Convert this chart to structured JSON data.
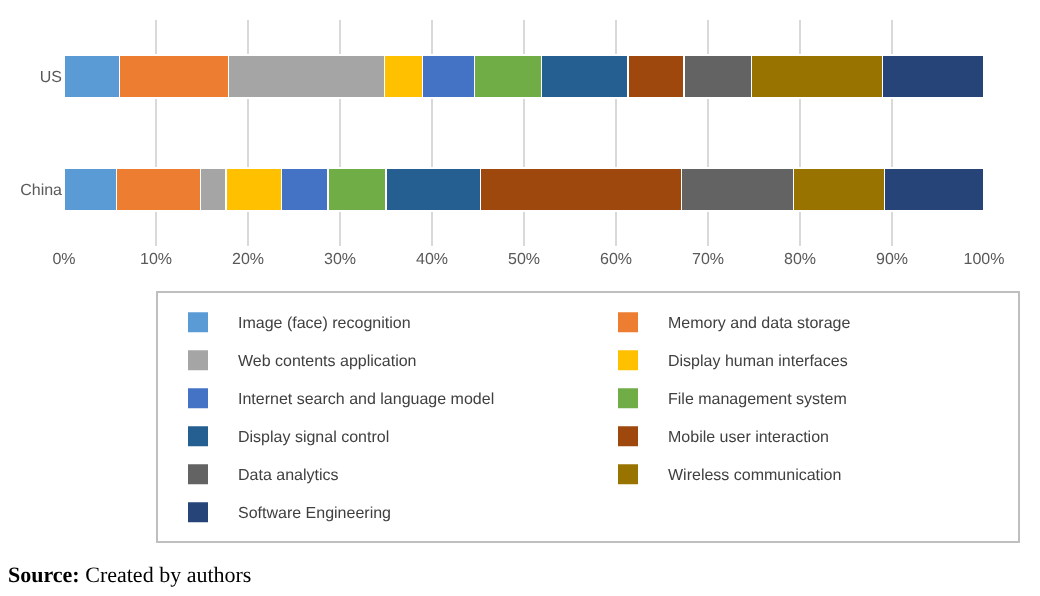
{
  "chart_data": {
    "type": "bar",
    "orientation": "horizontal",
    "stacked": true,
    "categories": [
      "US",
      "China"
    ],
    "series": [
      {
        "name": "Image (face) recognition",
        "color": "#5b9bd5",
        "values": [
          6.0,
          5.7
        ]
      },
      {
        "name": "Memory and data storage",
        "color": "#ed7d31",
        "values": [
          11.9,
          9.1
        ]
      },
      {
        "name": "Web contents application",
        "color": "#a5a5a5",
        "values": [
          16.9,
          2.8
        ]
      },
      {
        "name": "Display human interfaces",
        "color": "#ffc000",
        "values": [
          4.2,
          6.0
        ]
      },
      {
        "name": "Internet search and language model",
        "color": "#4472c4",
        "values": [
          5.6,
          5.1
        ]
      },
      {
        "name": "File management system",
        "color": "#70ad47",
        "values": [
          7.3,
          6.3
        ]
      },
      {
        "name": "Display signal control",
        "color": "#255e91",
        "values": [
          9.4,
          10.3
        ]
      },
      {
        "name": "Mobile user interaction",
        "color": "#9e480e",
        "values": [
          6.1,
          21.8
        ]
      },
      {
        "name": "Data analytics",
        "color": "#636363",
        "values": [
          7.3,
          12.2
        ]
      },
      {
        "name": "Wireless communication",
        "color": "#997300",
        "values": [
          14.3,
          9.9
        ]
      },
      {
        "name": "Software Engineering",
        "color": "#264478",
        "values": [
          11.0,
          10.8
        ]
      }
    ],
    "xlim": [
      0,
      100
    ],
    "xticks": [
      {
        "value": 0,
        "label": "0%"
      },
      {
        "value": 10,
        "label": "10%"
      },
      {
        "value": 20,
        "label": "20%"
      },
      {
        "value": 30,
        "label": "30%"
      },
      {
        "value": 40,
        "label": "40%"
      },
      {
        "value": 50,
        "label": "50%"
      },
      {
        "value": 60,
        "label": "60%"
      },
      {
        "value": 70,
        "label": "70%"
      },
      {
        "value": 80,
        "label": "80%"
      },
      {
        "value": 90,
        "label": "90%"
      },
      {
        "value": 100,
        "label": "100%"
      }
    ],
    "grid": "x",
    "legend": "bottom",
    "annotations": [
      "Source: Created by authors"
    ]
  }
}
